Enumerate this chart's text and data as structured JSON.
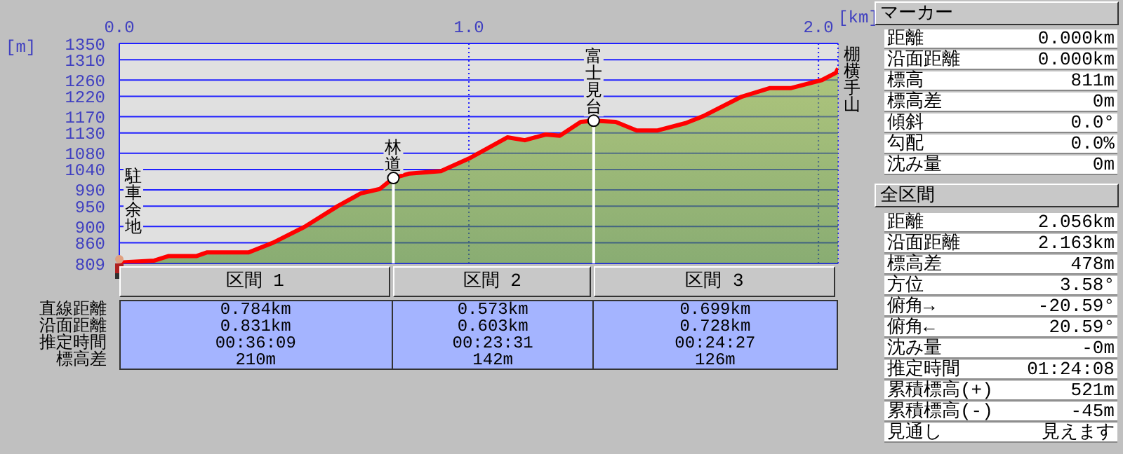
{
  "chart_data": {
    "type": "area",
    "xlabel": "[km]",
    "ylabel": "[m]",
    "x": [
      0,
      0.1,
      0.14,
      0.22,
      0.25,
      0.37,
      0.44,
      0.53,
      0.625,
      0.69,
      0.745,
      0.784,
      0.83,
      0.92,
      1.0,
      1.11,
      1.16,
      1.22,
      1.26,
      1.32,
      1.357,
      1.42,
      1.48,
      1.54,
      1.62,
      1.67,
      1.78,
      1.86,
      1.92,
      2.01,
      2.05,
      2.056
    ],
    "series": [
      {
        "color": "#ff0000",
        "values": [
          811,
          816,
          827,
          827,
          836,
          836,
          860,
          899,
          950,
          981,
          992,
          1019,
          1030,
          1036,
          1067,
          1119,
          1112,
          1126,
          1123,
          1157,
          1160,
          1157,
          1136,
          1136,
          1154,
          1171,
          1219,
          1240,
          1240,
          1260,
          1278,
          1289
        ]
      }
    ],
    "xlim": [
      0,
      2.056
    ],
    "xticks": [
      {
        "value": 0,
        "label": "0.0"
      },
      {
        "value": 1,
        "label": "1.0"
      },
      {
        "value": 2,
        "label": "2.0"
      }
    ],
    "ylim": [
      809,
      1350
    ],
    "yticks": [
      809,
      860,
      900,
      950,
      990,
      1040,
      1080,
      1130,
      1170,
      1220,
      1260,
      1310,
      1350
    ],
    "grid": true,
    "legend": false,
    "ref_lines": [
      {
        "axis": "x",
        "value": 0.784,
        "label": "林道",
        "color": "#ffffff"
      },
      {
        "axis": "x",
        "value": 1.357,
        "label": "富士見台",
        "color": "#ffffff"
      }
    ],
    "annotations": [
      {
        "text": "駐車余地",
        "x": 0,
        "y": 811
      },
      {
        "text": "棚横手山",
        "x": 2.056,
        "y": 1289
      },
      "区間 1",
      "区間 2",
      "区間 3",
      "直線距離",
      "沿面距離",
      "推定時間",
      "標高差",
      "0.784km",
      "0.831km",
      "00:36:09",
      "210m",
      "0.573km",
      "0.603km",
      "00:23:31",
      "142m",
      "0.699km",
      "0.728km",
      "00:24:27",
      "126m",
      "マーカー",
      "距離",
      "0.000km",
      "沿面距離",
      "0.000km",
      "標高",
      "811m",
      "標高差",
      "0m",
      "傾斜",
      "0.0°",
      "勾配",
      "0.0%",
      "沈み量",
      "0m",
      "全区間",
      "距離",
      "2.056km",
      "沿面距離",
      "2.163km",
      "標高差",
      "478m",
      "方位",
      "3.58°",
      "俯角→",
      "-20.59°",
      "俯角←",
      "20.59°",
      "沈み量",
      "-0m",
      "推定時間",
      "01:24:08",
      "累積標高(+)",
      "521m",
      "累積標高(-)",
      "-45m",
      "見通し",
      "見えます"
    ]
  }
}
